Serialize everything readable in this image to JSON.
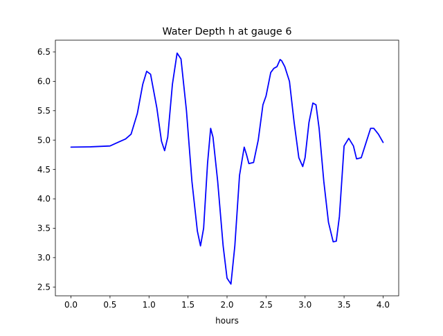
{
  "chart_data": {
    "type": "line",
    "title": "Water Depth h at gauge 6",
    "xlabel": "hours",
    "ylabel": "",
    "xlim": [
      -0.2,
      4.2
    ],
    "ylim": [
      2.35,
      6.7
    ],
    "x_ticks": [
      0.0,
      0.5,
      1.0,
      1.5,
      2.0,
      2.5,
      3.0,
      3.5,
      4.0
    ],
    "x_tick_labels": [
      "0.0",
      "0.5",
      "1.0",
      "1.5",
      "2.0",
      "2.5",
      "3.0",
      "3.5",
      "4.0"
    ],
    "y_ticks": [
      2.5,
      3.0,
      3.5,
      4.0,
      4.5,
      5.0,
      5.5,
      6.0,
      6.5
    ],
    "y_tick_labels": [
      "2.5",
      "3.0",
      "3.5",
      "4.0",
      "4.5",
      "5.0",
      "5.5",
      "6.0",
      "6.5"
    ],
    "grid": false,
    "legend": "none",
    "series": [
      {
        "color": "#0000ff",
        "x": [
          0.0,
          0.25,
          0.5,
          0.6,
          0.7,
          0.77,
          0.85,
          0.92,
          0.97,
          1.02,
          1.1,
          1.16,
          1.2,
          1.24,
          1.3,
          1.36,
          1.41,
          1.48,
          1.55,
          1.62,
          1.66,
          1.7,
          1.75,
          1.79,
          1.82,
          1.88,
          1.95,
          2.0,
          2.05,
          2.1,
          2.16,
          2.22,
          2.25,
          2.28,
          2.34,
          2.4,
          2.46,
          2.5,
          2.56,
          2.6,
          2.64,
          2.68,
          2.7,
          2.74,
          2.8,
          2.86,
          2.92,
          2.97,
          3.0,
          3.05,
          3.1,
          3.14,
          3.18,
          3.24,
          3.3,
          3.36,
          3.4,
          3.44,
          3.5,
          3.56,
          3.62,
          3.66,
          3.72,
          3.78,
          3.84,
          3.88,
          3.94,
          4.0
        ],
        "y": [
          4.88,
          4.885,
          4.9,
          4.96,
          5.02,
          5.1,
          5.45,
          5.95,
          6.17,
          6.12,
          5.55,
          4.98,
          4.82,
          5.05,
          5.95,
          6.48,
          6.38,
          5.5,
          4.3,
          3.45,
          3.2,
          3.5,
          4.6,
          5.2,
          5.05,
          4.3,
          3.2,
          2.65,
          2.55,
          3.2,
          4.4,
          4.88,
          4.75,
          4.6,
          4.62,
          5.0,
          5.6,
          5.75,
          6.15,
          6.22,
          6.25,
          6.37,
          6.35,
          6.25,
          6.0,
          5.3,
          4.7,
          4.55,
          4.7,
          5.3,
          5.63,
          5.6,
          5.2,
          4.3,
          3.6,
          3.27,
          3.28,
          3.7,
          4.9,
          5.03,
          4.9,
          4.68,
          4.7,
          4.95,
          5.2,
          5.2,
          5.1,
          4.96
        ]
      }
    ]
  }
}
